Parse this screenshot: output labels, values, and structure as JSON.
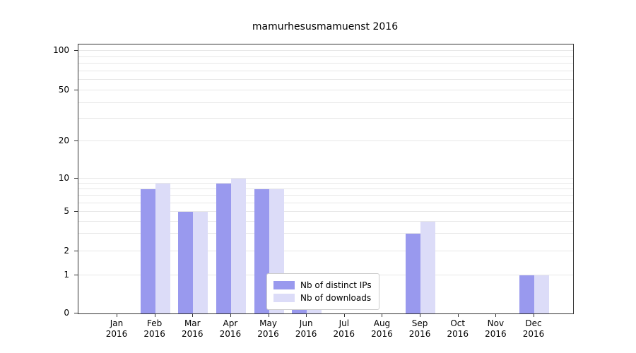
{
  "chart_data": {
    "type": "bar",
    "title": "mamurhesusmamuenst 2016",
    "categories": [
      "Jan 2016",
      "Feb 2016",
      "Mar 2016",
      "Apr 2016",
      "May 2016",
      "Jun 2016",
      "Jul 2016",
      "Aug 2016",
      "Sep 2016",
      "Oct 2016",
      "Nov 2016",
      "Dec 2016"
    ],
    "series": [
      {
        "name": "Nb of distinct IPs",
        "color": "#9999ee",
        "values": [
          0,
          8,
          5,
          9,
          8,
          1,
          0,
          0,
          3,
          0,
          0,
          1
        ]
      },
      {
        "name": "Nb of downloads",
        "color": "#dcdcf8",
        "values": [
          0,
          9,
          5,
          10,
          8,
          1,
          0,
          0,
          4,
          0,
          0,
          1
        ]
      }
    ],
    "xlabel": "",
    "ylabel": "",
    "y_ticks": [
      100,
      50,
      20,
      10,
      5,
      2,
      1,
      0
    ],
    "y_scale": "symlog",
    "ylim": [
      0,
      115
    ],
    "grid": "horizontal-minor-log",
    "gridline_values": [
      1,
      2,
      3,
      4,
      5,
      6,
      7,
      8,
      9,
      10,
      20,
      30,
      40,
      50,
      60,
      70,
      80,
      90,
      100
    ],
    "legend_position": "lower-center-inside",
    "legend_border_color": "#cccccc"
  }
}
